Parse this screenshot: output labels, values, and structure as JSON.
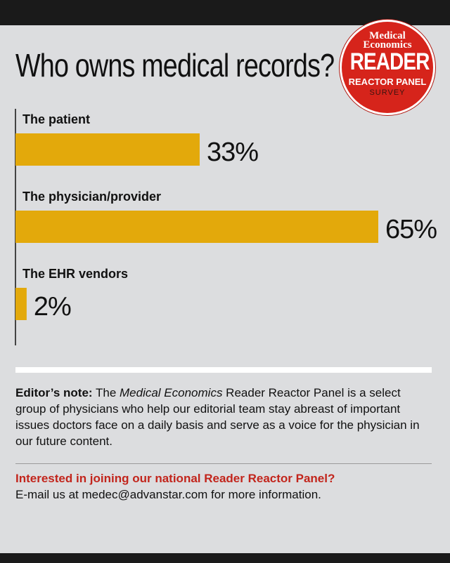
{
  "title": "Who owns medical records?",
  "badge": {
    "brand_line1": "Medical",
    "brand_line2": "Economics",
    "big": "READER",
    "mid": "REACTOR PANEL",
    "small": "SURVEY"
  },
  "colors": {
    "bar": "#e3a90b",
    "badge": "#d6241b",
    "panel": "#dcdddf",
    "accent_text": "#c2251c"
  },
  "chart_data": {
    "type": "bar",
    "orientation": "horizontal",
    "categories": [
      "The patient",
      "The physician/provider",
      "The EHR vendors"
    ],
    "values": [
      33,
      65,
      2
    ],
    "value_labels": [
      "33%",
      "65%",
      "2%"
    ],
    "xlim": [
      0,
      100
    ],
    "grid": false
  },
  "note": {
    "lead": "Editor’s note:",
    "pre": " The ",
    "italic": "Medical Economics",
    "rest": " Reader Reactor Panel is a select group of physicians who help our editorial team stay abreast of important issues doctors face on a daily basis and serve as a voice for the physician in our future content."
  },
  "cta": {
    "question": "Interested in joining our national Reader Reactor Panel?",
    "email_line": "E-mail us at medec@advanstar.com for more information."
  }
}
